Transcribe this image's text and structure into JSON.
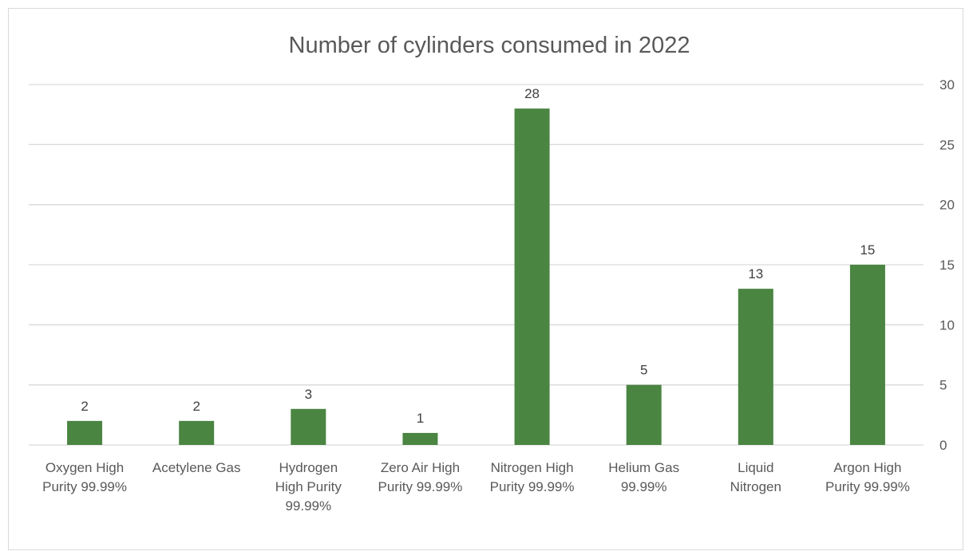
{
  "chart_data": {
    "type": "bar",
    "title": "Number of cylinders consumed in 2022",
    "categories": [
      "Oxygen High Purity 99.99%",
      "Acetylene Gas",
      "Hydrogen High Purity 99.99%",
      "Zero Air High Purity 99.99%",
      "Nitrogen High Purity 99.99%",
      "Helium Gas 99.99%",
      "Liquid Nitrogen",
      "Argon High Purity 99.99%"
    ],
    "category_label_lines": [
      [
        "Oxygen High",
        "Purity 99.99%"
      ],
      [
        "Acetylene Gas"
      ],
      [
        "Hydrogen",
        "High Purity",
        "99.99%"
      ],
      [
        "Zero Air High",
        "Purity 99.99%"
      ],
      [
        "Nitrogen High",
        "Purity 99.99%"
      ],
      [
        "Helium Gas",
        "99.99%"
      ],
      [
        "Liquid",
        "Nitrogen"
      ],
      [
        "Argon High",
        "Purity 99.99%"
      ]
    ],
    "values": [
      2,
      2,
      3,
      1,
      28,
      5,
      13,
      15
    ],
    "data_labels": true,
    "xlabel": "",
    "ylabel": "",
    "ylim": [
      0,
      30
    ],
    "yticks": [
      0,
      5,
      10,
      15,
      20,
      25,
      30
    ],
    "y_axis_position": "right",
    "grid": true,
    "legend": "none",
    "colors": {
      "bar": "#4a8542",
      "grid": "#d9d9d9",
      "text": "#595959"
    }
  }
}
